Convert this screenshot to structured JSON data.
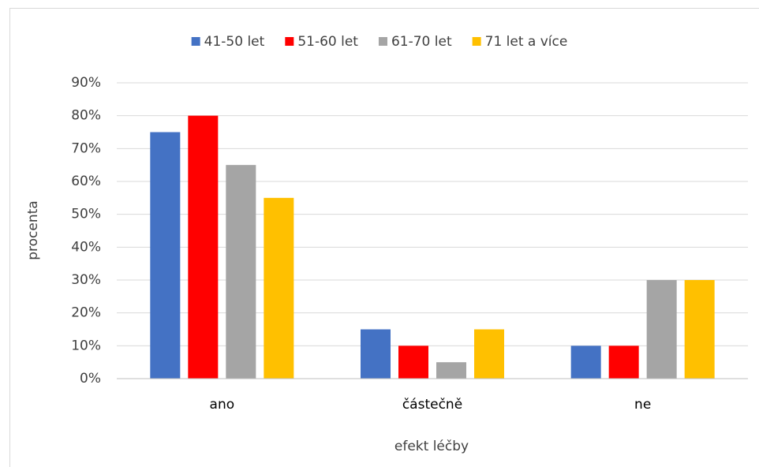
{
  "chart_data": {
    "type": "bar",
    "categories": [
      "ano",
      "částečně",
      "ne"
    ],
    "series": [
      {
        "name": "41-50 let",
        "color": "#4472c4",
        "values": [
          75,
          15,
          10
        ]
      },
      {
        "name": "51-60 let",
        "color": "#ff0000",
        "values": [
          80,
          10,
          10
        ]
      },
      {
        "name": "61-70 let",
        "color": "#a5a5a5",
        "values": [
          65,
          5,
          30
        ]
      },
      {
        "name": "71 let a více",
        "color": "#ffc000",
        "values": [
          55,
          15,
          30
        ]
      }
    ],
    "ylabel": "procenta",
    "xlabel": "efekt léčby",
    "ylim": [
      0,
      90
    ],
    "yticks": [
      {
        "value": 0,
        "label": "0%"
      },
      {
        "value": 10,
        "label": "10%"
      },
      {
        "value": 20,
        "label": "20%"
      },
      {
        "value": 30,
        "label": "30%"
      },
      {
        "value": 40,
        "label": "40%"
      },
      {
        "value": 50,
        "label": "50%"
      },
      {
        "value": 60,
        "label": "60%"
      },
      {
        "value": 70,
        "label": "70%"
      },
      {
        "value": 80,
        "label": "80%"
      },
      {
        "value": 90,
        "label": "90%"
      }
    ],
    "grid": true,
    "legend": "top"
  }
}
